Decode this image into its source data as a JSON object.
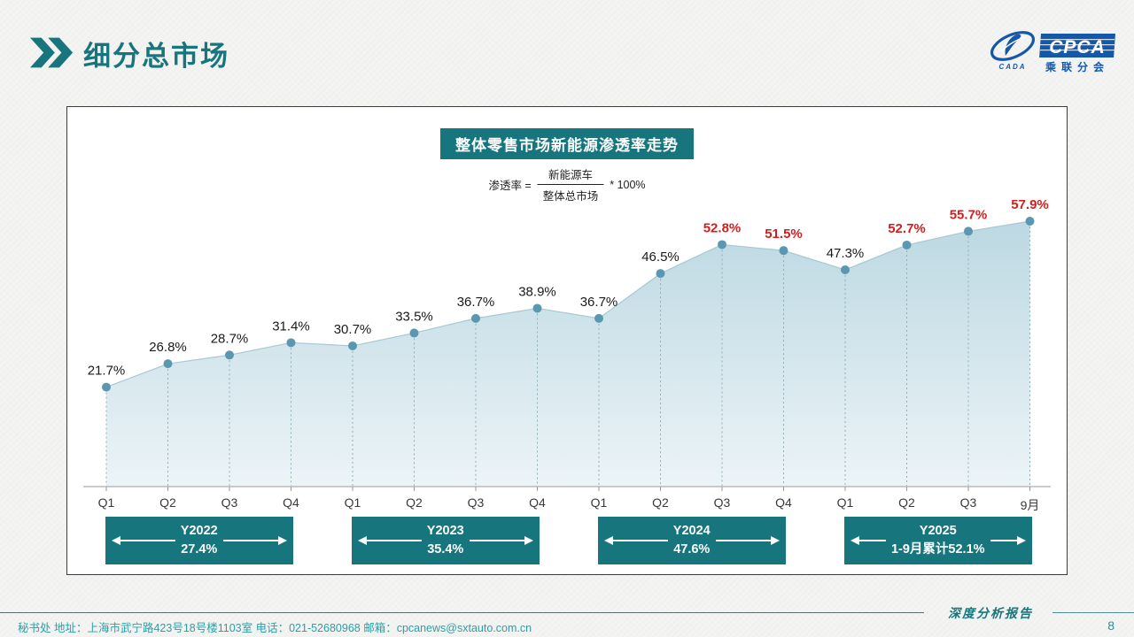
{
  "page": {
    "title": "细分总市场",
    "page_number": "8",
    "report_label": "深度分析报告",
    "footer": "秘书处   地址：上海市武宁路423号18号楼1103室  电话：021-52680968   邮箱：cpcanews@sxtauto.com.cn"
  },
  "logo": {
    "acronym": "CPCA",
    "cn_name": "乘联分会",
    "emblem_text": "CADA"
  },
  "colors": {
    "teal": "#17767d",
    "red_label": "#d41e1e",
    "black_label": "#1a1a1a",
    "marker": "#5b97b0",
    "line": "#a8c8d2",
    "drop_line": "#8fafb7",
    "area_top": "#bcd8e2",
    "area_bottom": "#ecf4f7",
    "axis": "#9a9a9a",
    "logo_blue": "#1558a8"
  },
  "chart_data": {
    "type": "area",
    "title": "整体零售市场新能源渗透率走势",
    "formula": {
      "lhs": "渗透率 =",
      "numerator": "新能源车",
      "denominator": "整体总市场",
      "rhs": "* 100%"
    },
    "x": [
      "Q1",
      "Q2",
      "Q3",
      "Q4",
      "Q1",
      "Q2",
      "Q3",
      "Q4",
      "Q1",
      "Q2",
      "Q3",
      "Q4",
      "Q1",
      "Q2",
      "Q3",
      "9月"
    ],
    "values": [
      21.7,
      26.8,
      28.7,
      31.4,
      30.7,
      33.5,
      36.7,
      38.9,
      36.7,
      46.5,
      52.8,
      51.5,
      47.3,
      52.7,
      55.7,
      57.9
    ],
    "labels": [
      "21.7%",
      "26.8%",
      "28.7%",
      "31.4%",
      "30.7%",
      "33.5%",
      "36.7%",
      "38.9%",
      "36.7%",
      "46.5%",
      "52.8%",
      "51.5%",
      "47.3%",
      "52.7%",
      "55.7%",
      "57.9%"
    ],
    "label_highlight": [
      false,
      false,
      false,
      false,
      false,
      false,
      false,
      false,
      false,
      false,
      true,
      true,
      false,
      true,
      true,
      true
    ],
    "ylim": [
      0,
      65
    ],
    "grid": false,
    "year_bands": [
      {
        "label": "Y2022",
        "value": "27.4%",
        "span": [
          0,
          3
        ]
      },
      {
        "label": "Y2023",
        "value": "35.4%",
        "span": [
          4,
          7
        ]
      },
      {
        "label": "Y2024",
        "value": "47.6%",
        "span": [
          8,
          11
        ]
      },
      {
        "label": "Y2025",
        "value": "1-9月累计52.1%",
        "span": [
          12,
          15
        ]
      }
    ]
  }
}
